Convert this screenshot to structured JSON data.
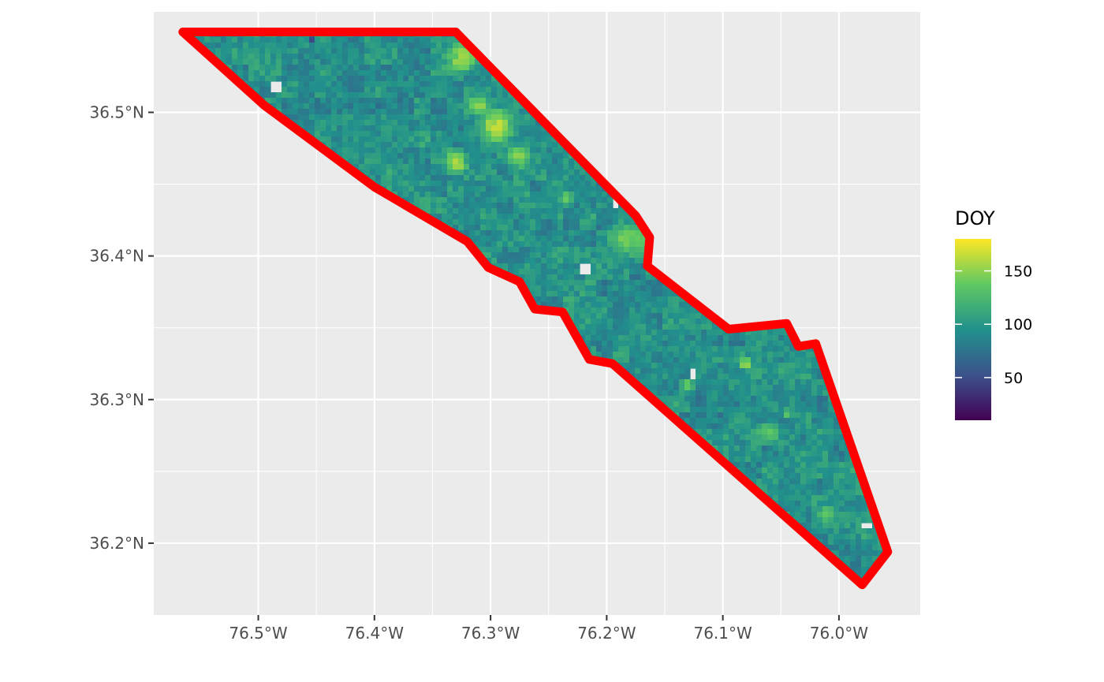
{
  "chart_data": {
    "type": "heatmap",
    "title": "",
    "xlabel": "",
    "ylabel": "",
    "xlim": [
      -76.59,
      -75.93
    ],
    "ylim": [
      36.15,
      36.57
    ],
    "grid": true,
    "x_ticks": [
      {
        "value": -76.5,
        "label": "76.5°W"
      },
      {
        "value": -76.4,
        "label": "76.4°W"
      },
      {
        "value": -76.3,
        "label": "76.3°W"
      },
      {
        "value": -76.2,
        "label": "76.2°W"
      },
      {
        "value": -76.1,
        "label": "76.1°W"
      },
      {
        "value": -76.0,
        "label": "76.0°W"
      }
    ],
    "y_ticks": [
      {
        "value": 36.5,
        "label": "36.5°N"
      },
      {
        "value": 36.4,
        "label": "36.4°N"
      },
      {
        "value": 36.3,
        "label": "36.3°N"
      },
      {
        "value": 36.2,
        "label": "36.2°N"
      }
    ],
    "legend": {
      "title": "DOY",
      "placement": "right",
      "min": 10,
      "max": 180,
      "ticks": [
        {
          "value": 150,
          "label": "150"
        },
        {
          "value": 100,
          "label": "100"
        },
        {
          "value": 50,
          "label": "50"
        }
      ],
      "colormap": "viridis",
      "colors": [
        "#440154",
        "#3b528b",
        "#21918c",
        "#5ec962",
        "#fde725"
      ]
    },
    "boundary": {
      "color": "#ff0000",
      "vertices": [
        [
          -76.565,
          36.556
        ],
        [
          -76.33,
          36.556
        ],
        [
          -76.175,
          36.428
        ],
        [
          -76.163,
          36.413
        ],
        [
          -76.165,
          36.393
        ],
        [
          -76.095,
          36.349
        ],
        [
          -76.045,
          36.353
        ],
        [
          -76.035,
          36.337
        ],
        [
          -76.02,
          36.339
        ],
        [
          -75.958,
          36.194
        ],
        [
          -75.98,
          36.171
        ],
        [
          -76.195,
          36.325
        ],
        [
          -76.215,
          36.328
        ],
        [
          -76.238,
          36.361
        ],
        [
          -76.262,
          36.363
        ],
        [
          -76.275,
          36.382
        ],
        [
          -76.302,
          36.392
        ],
        [
          -76.32,
          36.41
        ],
        [
          -76.4,
          36.448
        ],
        [
          -76.495,
          36.505
        ]
      ]
    },
    "raster": {
      "background_doy": 95,
      "patches": [
        {
          "lon": -76.325,
          "lat": 36.538,
          "r": 0.018,
          "doy": 155
        },
        {
          "lon": -76.295,
          "lat": 36.49,
          "r": 0.018,
          "doy": 165
        },
        {
          "lon": -76.31,
          "lat": 36.505,
          "r": 0.012,
          "doy": 150
        },
        {
          "lon": -76.33,
          "lat": 36.465,
          "r": 0.013,
          "doy": 160
        },
        {
          "lon": -76.275,
          "lat": 36.47,
          "r": 0.012,
          "doy": 150
        },
        {
          "lon": -76.165,
          "lat": 36.41,
          "r": 0.022,
          "doy": 140
        },
        {
          "lon": -76.185,
          "lat": 36.412,
          "r": 0.016,
          "doy": 145
        },
        {
          "lon": -76.235,
          "lat": 36.44,
          "r": 0.008,
          "doy": 140
        },
        {
          "lon": -76.08,
          "lat": 36.325,
          "r": 0.007,
          "doy": 160
        },
        {
          "lon": -76.06,
          "lat": 36.277,
          "r": 0.012,
          "doy": 140
        },
        {
          "lon": -76.01,
          "lat": 36.22,
          "r": 0.008,
          "doy": 145
        },
        {
          "lon": -76.13,
          "lat": 36.31,
          "r": 0.008,
          "doy": 135
        },
        {
          "lon": -76.045,
          "lat": 36.29,
          "r": 0.006,
          "doy": 140
        },
        {
          "lon": -76.42,
          "lat": 36.52,
          "r": 0.012,
          "doy": 75
        },
        {
          "lon": -76.25,
          "lat": 36.42,
          "r": 0.012,
          "doy": 75
        },
        {
          "lon": -76.19,
          "lat": 36.36,
          "r": 0.012,
          "doy": 80
        },
        {
          "lon": -76.12,
          "lat": 36.3,
          "r": 0.01,
          "doy": 70
        },
        {
          "lon": -76.455,
          "lat": 36.552,
          "r": 0.004,
          "doy": 20
        }
      ],
      "holes": [
        {
          "lon": -76.485,
          "lat": 36.519,
          "r": 0.005
        },
        {
          "lon": -76.218,
          "lat": 36.39,
          "r": 0.006
        },
        {
          "lon": -76.192,
          "lat": 36.437,
          "r": 0.004
        },
        {
          "lon": -75.975,
          "lat": 36.212,
          "r": 0.004
        },
        {
          "lon": -76.125,
          "lat": 36.318,
          "r": 0.003
        }
      ]
    }
  }
}
